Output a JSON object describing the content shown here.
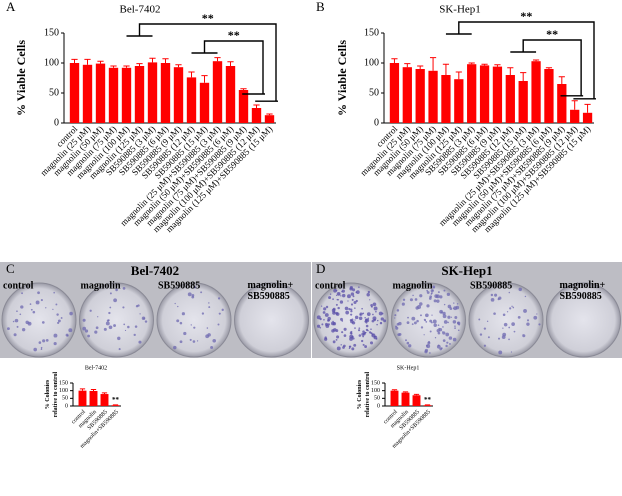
{
  "panel_letters": [
    "A",
    "B",
    "C",
    "D"
  ],
  "plates": [
    {
      "title": "Bel-7402",
      "labels": [
        "control",
        "magnolin",
        "SB590885",
        "magnolin+ SB590885"
      ]
    },
    {
      "title": "SK-Hep1",
      "labels": [
        "control",
        "magnolin",
        "SB590885",
        "magnolin+ SB590885"
      ]
    }
  ],
  "chart_data": [
    {
      "type": "bar",
      "title": "Bel-7402",
      "y_label": "% Viable Cells",
      "color": "#ff0000",
      "categories": [
        "control",
        "magnolin (25 μM)",
        "magnolin (50 μM)",
        "magnolin (75 μM)",
        "magnolin (100 μM)",
        "magnolin (125 μM)",
        "SB590885 (3 μM)",
        "SB590885 (6 μM)",
        "SB590885 (9 μM)",
        "SB590885 (12 μM)",
        "SB590885 (15 μM)",
        "magnolin (25 μM)+SB590885 (3 μM)",
        "magnolin (50 μM)+SB590885 (6 μM)",
        "magnolin (75 μM)+SB590885 (9 μM)",
        "magnolin (100 μM)+SB590885 (12 μM)",
        "magnolin (125 μM)+SB590885 (15 μM)"
      ],
      "values": [
        100,
        97,
        99,
        92,
        92,
        95,
        101,
        100,
        93,
        76,
        67,
        103,
        95,
        55,
        25,
        13
      ],
      "errors": [
        6,
        9,
        4,
        3,
        3,
        4,
        7,
        7,
        4,
        9,
        12,
        6,
        7,
        2,
        5,
        2
      ],
      "annotations": [
        "**",
        "**"
      ],
      "ylim": [
        0,
        150
      ],
      "yticks": [
        0,
        50,
        100,
        150
      ]
    },
    {
      "type": "bar",
      "title": "SK-Hep1",
      "y_label": "% Viable Cells",
      "color": "#ff0000",
      "categories": [
        "control",
        "magnolin (25 μM)",
        "magnolin (50 μM)",
        "magnolin (75 μM)",
        "magnolin (100 μM)",
        "magnolin (125 μM)",
        "SB590885 (3 μM)",
        "SB590885 (6 μM)",
        "SB590885 (9 μM)",
        "SB590885 (12 μM)",
        "SB590885 (15 μM)",
        "magnolin (25 μM)+SB590885 (3 μM)",
        "magnolin (50 μM)+SB590885 (6 μM)",
        "magnolin (75 μM)+SB590885 (9 μM)",
        "magnolin (100 μM)+SB590885 (12 μM)",
        "magnolin (125 μM)+SB590885 (15 μM)"
      ],
      "values": [
        100,
        93,
        90,
        87,
        80,
        73,
        98,
        96,
        94,
        80,
        70,
        103,
        90,
        65,
        22,
        17
      ],
      "errors": [
        7,
        6,
        5,
        22,
        18,
        12,
        2,
        2,
        3,
        12,
        14,
        2,
        2,
        12,
        15,
        14
      ],
      "annotations": [
        "**",
        "**"
      ],
      "ylim": [
        0,
        150
      ],
      "yticks": [
        0,
        50,
        100,
        150
      ]
    },
    {
      "type": "bar",
      "title": "Bel-7402",
      "y_label": "% Colonies relative to control",
      "color": "#ff0000",
      "categories": [
        "control",
        "magnolin",
        "SB590885",
        "magnolin+SB590885"
      ],
      "values": [
        100,
        98,
        78,
        5
      ],
      "errors": [
        12,
        10,
        8,
        2
      ],
      "annotations": [
        "**"
      ],
      "ylim": [
        0,
        150
      ],
      "yticks": [
        0,
        50,
        100,
        150
      ]
    },
    {
      "type": "bar",
      "title": "SK-Hep1",
      "y_label": "% Colonies relative to control",
      "color": "#ff0000",
      "categories": [
        "control",
        "magnolin",
        "SB590885",
        "magnolin+SB590885"
      ],
      "values": [
        100,
        87,
        70,
        5
      ],
      "errors": [
        6,
        5,
        6,
        2
      ],
      "annotations": [
        "**"
      ],
      "ylim": [
        0,
        150
      ],
      "yticks": [
        0,
        50,
        100,
        150
      ]
    }
  ]
}
